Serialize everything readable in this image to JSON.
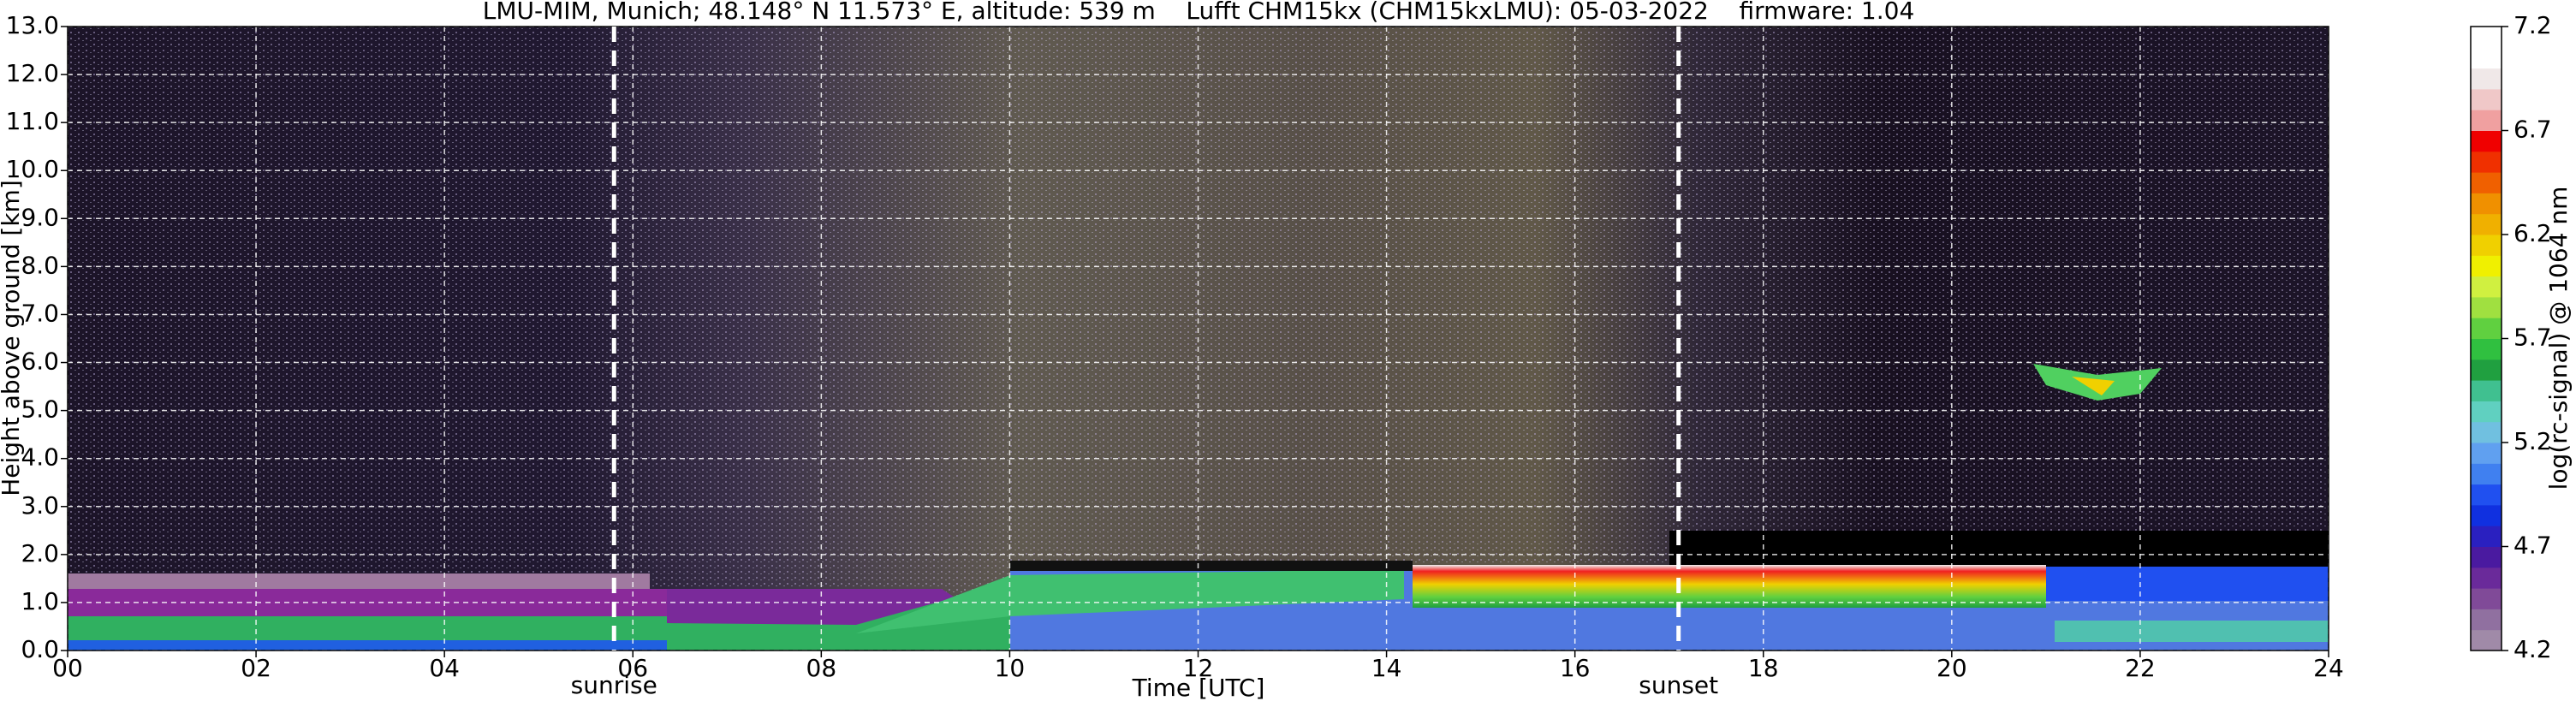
{
  "chart_data": {
    "type": "heatmap",
    "title": "LMU-MIM, Munich; 48.148° N 11.573° E, altitude: 539 m    Lufft CHM15kx (CHM15kxLMU): 05-03-2022    firmware: 1.04",
    "x_label": "Time [UTC]",
    "y_label": "Height above ground [km]",
    "xlim": [
      0,
      24
    ],
    "xticks": [
      {
        "value": 0,
        "label": "00"
      },
      {
        "value": 2,
        "label": "02"
      },
      {
        "value": 4,
        "label": "04"
      },
      {
        "value": 6,
        "label": "06"
      },
      {
        "value": 8,
        "label": "08"
      },
      10,
      12,
      14,
      16,
      18,
      20,
      22,
      24
    ],
    "ylim": [
      0,
      13
    ],
    "yticks": [
      {
        "value": 0,
        "label": "0.0"
      },
      {
        "value": 1,
        "label": "1.0"
      },
      {
        "value": 2,
        "label": "2.0"
      },
      {
        "value": 3,
        "label": "3.0"
      },
      {
        "value": 4,
        "label": "4.0"
      },
      {
        "value": 5,
        "label": "5.0"
      },
      {
        "value": 6,
        "label": "6.0"
      },
      {
        "value": 7,
        "label": "7.0"
      },
      {
        "value": 8,
        "label": "8.0"
      },
      {
        "value": 9,
        "label": "9.0"
      },
      {
        "value": 10,
        "label": "10.0"
      },
      {
        "value": 11,
        "label": "11.0"
      },
      {
        "value": 12,
        "label": "12.0"
      },
      {
        "value": 13,
        "label": "13.0"
      }
    ],
    "grid": true,
    "annotations": [
      {
        "text": "sunrise",
        "x": 5.8
      },
      {
        "text": "sunset",
        "x": 17.1
      }
    ],
    "colorbar": {
      "label": "log(rc-signal) @ 1064 nm",
      "lim": [
        4.2,
        7.2
      ],
      "ticks": [
        4.2,
        4.7,
        5.2,
        5.7,
        6.2,
        6.7,
        7.2
      ],
      "colors": [
        "#a08aa8",
        "#9070a0",
        "#804a98",
        "#6a2a9a",
        "#4a1aa0",
        "#2a20c0",
        "#1030e0",
        "#2050f0",
        "#4080f0",
        "#60a0f0",
        "#70c0e0",
        "#60d0c0",
        "#40c090",
        "#20a040",
        "#30c040",
        "#60d040",
        "#a0e040",
        "#d0f040",
        "#f0f000",
        "#f0d000",
        "#f0b000",
        "#f09000",
        "#f06000",
        "#f03000",
        "#f00000",
        "#f0a0a0",
        "#f0c8c8",
        "#f0e8e8",
        "#ffffff",
        "#ffffff"
      ]
    }
  }
}
